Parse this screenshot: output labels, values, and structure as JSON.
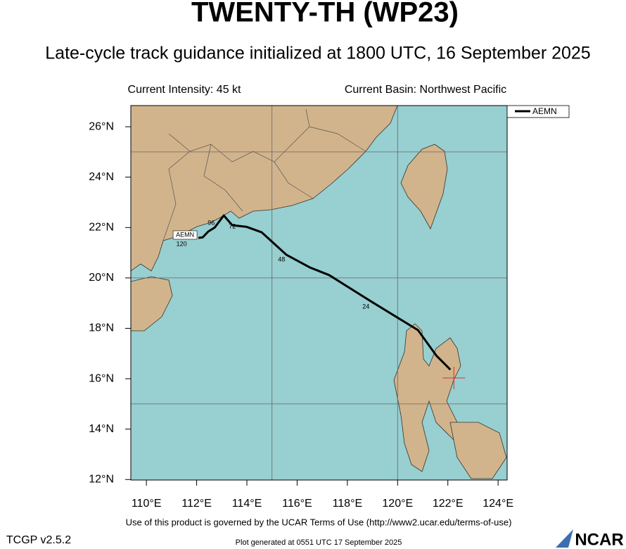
{
  "map": {
    "title": "TWENTY-TH (WP23)",
    "subtitle": "Late-cycle track guidance initialized at 1800 UTC, 16 September 2025",
    "intensity": "Current Intensity: 45 kt",
    "basin": "Current Basin: Northwest Pacific",
    "xlim": [
      109.38,
      124.36
    ],
    "ylim": [
      11.98,
      26.84
    ],
    "xticks": [
      {
        "value": 110,
        "label": "110°E"
      },
      {
        "value": 112,
        "label": "112°E"
      },
      {
        "value": 114,
        "label": "114°E"
      },
      {
        "value": 116,
        "label": "116°E"
      },
      {
        "value": 118,
        "label": "118°E"
      },
      {
        "value": 120,
        "label": "120°E"
      },
      {
        "value": 122,
        "label": "122°E"
      },
      {
        "value": 124,
        "label": "124°E"
      }
    ],
    "yticks": [
      {
        "value": 12,
        "label": "12°N"
      },
      {
        "value": 14,
        "label": "14°N"
      },
      {
        "value": 16,
        "label": "16°N"
      },
      {
        "value": 18,
        "label": "18°N"
      },
      {
        "value": 20,
        "label": "20°N"
      },
      {
        "value": 22,
        "label": "22°N"
      },
      {
        "value": 24,
        "label": "24°N"
      },
      {
        "value": 26,
        "label": "26°N"
      }
    ],
    "grid_lon": [
      115,
      120
    ],
    "grid_lat": [
      15,
      20,
      25
    ],
    "storm": {
      "lon": 122.24,
      "lat": 16.03,
      "color": "#e03030"
    },
    "track": {
      "name": "AEMN",
      "color": "#000000",
      "lon": [
        122.1,
        121.54,
        120.81,
        119.02,
        117.28,
        116.5,
        115.57,
        114.59,
        113.98,
        113.42,
        113.08,
        112.72,
        112.46,
        112.24,
        112.07
      ],
      "lat": [
        16.36,
        16.92,
        17.93,
        19.02,
        20.11,
        20.42,
        20.92,
        21.81,
        22.03,
        22.09,
        22.48,
        22.0,
        21.84,
        21.61,
        21.59
      ]
    },
    "hour_labels": [
      {
        "label": 24,
        "lon": 118.74,
        "lat": 18.85
      },
      {
        "label": 48,
        "lon": 115.38,
        "lat": 20.72
      },
      {
        "label": 72,
        "lon": 113.42,
        "lat": 22.03
      },
      {
        "label": 96,
        "lon": 112.58,
        "lat": 22.17
      },
      {
        "label": 120,
        "lon": 111.4,
        "lat": 21.34
      }
    ],
    "terms": "Use of this product is governed by the UCAR Terms of Use (http://www2.ucar.edu/terms-of-use)",
    "version": "TCGP v2.5.2",
    "generated": "Plot generated at 0551 UTC   17 September 2025",
    "logo": "NCAR"
  }
}
